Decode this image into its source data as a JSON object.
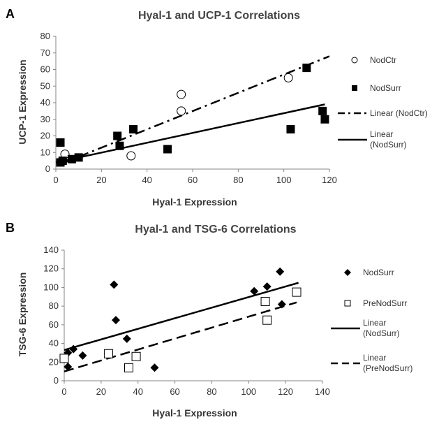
{
  "chart_data": [
    {
      "panel_label": "A",
      "type": "scatter",
      "title": "Hyal-1 and UCP-1 Correlations",
      "xlabel": "Hyal-1 Expression",
      "ylabel": "UCP-1 Expression",
      "xlim": [
        0,
        120
      ],
      "ylim": [
        0,
        80
      ],
      "xticks": [
        "0",
        "20",
        "40",
        "60",
        "80",
        "100",
        "120"
      ],
      "yticks": [
        "0",
        "10",
        "20",
        "30",
        "40",
        "50",
        "60",
        "70",
        "80"
      ],
      "xtick_values": [
        0,
        20,
        40,
        60,
        80,
        100,
        120
      ],
      "ytick_values": [
        0,
        10,
        20,
        30,
        40,
        50,
        60,
        70,
        80
      ],
      "series": [
        {
          "name": "NodCtr",
          "marker": "open-circle",
          "x": [
            4,
            33,
            55,
            55,
            102
          ],
          "y": [
            9,
            8,
            35,
            45,
            55
          ]
        },
        {
          "name": "NodSurr",
          "marker": "filled-square",
          "x": [
            2,
            2,
            3,
            7,
            10,
            27,
            28,
            34,
            49,
            103,
            110,
            117,
            118
          ],
          "y": [
            4,
            16,
            5,
            6,
            7,
            20,
            14,
            24,
            12,
            24,
            61,
            35,
            30
          ]
        }
      ],
      "trendlines": [
        {
          "name": "Linear (NodCtr)",
          "style": "dash-dot",
          "x": [
            2,
            120
          ],
          "y": [
            3,
            68
          ]
        },
        {
          "name": "Linear (NodSurr)",
          "style": "solid",
          "x": [
            0,
            118
          ],
          "y": [
            4,
            39
          ]
        }
      ],
      "legend": [
        {
          "label": "NodCtr",
          "symbol": "open-circle"
        },
        {
          "label": "NodSurr",
          "symbol": "filled-square"
        },
        {
          "label": "Linear (NodCtr)",
          "lines": [
            "Linear (NodCtr)"
          ],
          "symbol": "dash-dot-line"
        },
        {
          "label": "Linear (NodSurr)",
          "lines": [
            "Linear",
            "(NodSurr)"
          ],
          "symbol": "solid-line"
        }
      ]
    },
    {
      "panel_label": "B",
      "type": "scatter",
      "title": "Hyal-1 and TSG-6 Correlations",
      "xlabel": "Hyal-1 Expression",
      "ylabel": "TSG-6 Expression",
      "xlim": [
        0,
        140
      ],
      "ylim": [
        0,
        140
      ],
      "xticks": [
        "0",
        "20",
        "40",
        "60",
        "80",
        "100",
        "120",
        "140"
      ],
      "yticks": [
        "0",
        "20",
        "40",
        "60",
        "80",
        "100",
        "120",
        "140"
      ],
      "xtick_values": [
        0,
        20,
        40,
        60,
        80,
        100,
        120,
        140
      ],
      "ytick_values": [
        0,
        20,
        40,
        60,
        80,
        100,
        120,
        140
      ],
      "series": [
        {
          "name": "NodSurr",
          "marker": "filled-diamond",
          "x": [
            2,
            2,
            5,
            10,
            27,
            28,
            34,
            49,
            103,
            110,
            117,
            118
          ],
          "y": [
            15,
            30,
            34,
            27,
            103,
            65,
            45,
            14,
            96,
            101,
            117,
            82
          ]
        },
        {
          "name": "PreNodSurr",
          "marker": "open-square",
          "x": [
            0,
            24,
            35,
            39,
            109,
            110,
            126
          ],
          "y": [
            24,
            29,
            14,
            26,
            85,
            65,
            95
          ]
        }
      ],
      "trendlines": [
        {
          "name": "Linear (NodSurr)",
          "style": "solid",
          "x": [
            0,
            127
          ],
          "y": [
            33,
            105
          ]
        },
        {
          "name": "Linear (PreNodSurr)",
          "style": "dashed",
          "x": [
            0,
            126
          ],
          "y": [
            10,
            84
          ]
        }
      ],
      "legend": [
        {
          "label": "NodSurr",
          "symbol": "filled-diamond"
        },
        {
          "label": "PreNodSurr",
          "symbol": "open-square"
        },
        {
          "label": "Linear (NodSurr)",
          "lines": [
            "Linear",
            "(NodSurr)"
          ],
          "symbol": "solid-line"
        },
        {
          "label": "Linear (PreNodSurr)",
          "lines": [
            "Linear",
            "(PreNodSurr)"
          ],
          "symbol": "dashed-line"
        }
      ]
    }
  ]
}
